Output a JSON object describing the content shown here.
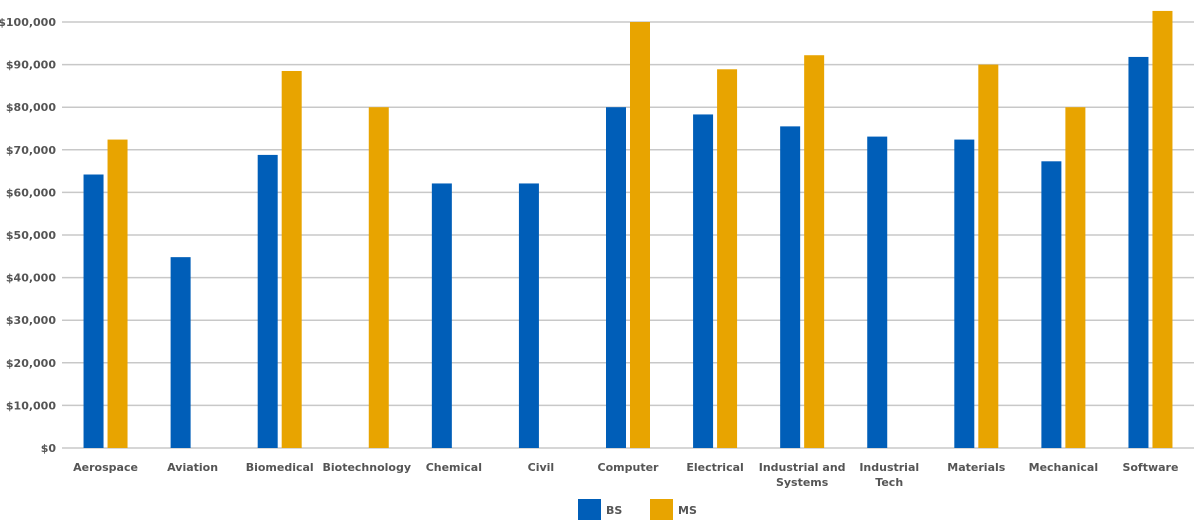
{
  "chart_data": {
    "type": "bar",
    "categories": [
      [
        "Aerospace"
      ],
      [
        "Aviation"
      ],
      [
        "Biomedical"
      ],
      [
        "Biotechnology"
      ],
      [
        "Chemical"
      ],
      [
        "Civil"
      ],
      [
        "Computer"
      ],
      [
        "Electrical"
      ],
      [
        "Industrial and",
        "Systems"
      ],
      [
        "Industrial",
        "Tech"
      ],
      [
        "Materials"
      ],
      [
        "Mechanical"
      ],
      [
        "Software"
      ]
    ],
    "series": [
      {
        "name": "BS",
        "color": "#005eb8",
        "values": [
          64200,
          44800,
          68800,
          null,
          62100,
          62100,
          80000,
          78300,
          75500,
          73100,
          72400,
          67300,
          91800
        ]
      },
      {
        "name": "MS",
        "color": "#e8a400",
        "values": [
          72400,
          null,
          88500,
          80000,
          null,
          null,
          100000,
          88900,
          92200,
          null,
          90000,
          80000,
          102600
        ]
      }
    ],
    "ylim": [
      0,
      100000
    ],
    "yticks": [
      "$0",
      "$10,000",
      "$20,000",
      "$30,000",
      "$40,000",
      "$50,000",
      "$60,000",
      "$70,000",
      "$80,000",
      "$90,000",
      "$100,000"
    ],
    "ytick_values": [
      0,
      10000,
      20000,
      30000,
      40000,
      50000,
      60000,
      70000,
      80000,
      90000,
      100000
    ],
    "grid": true,
    "legend_position": "bottom-center",
    "title": "",
    "xlabel": "",
    "ylabel": ""
  }
}
